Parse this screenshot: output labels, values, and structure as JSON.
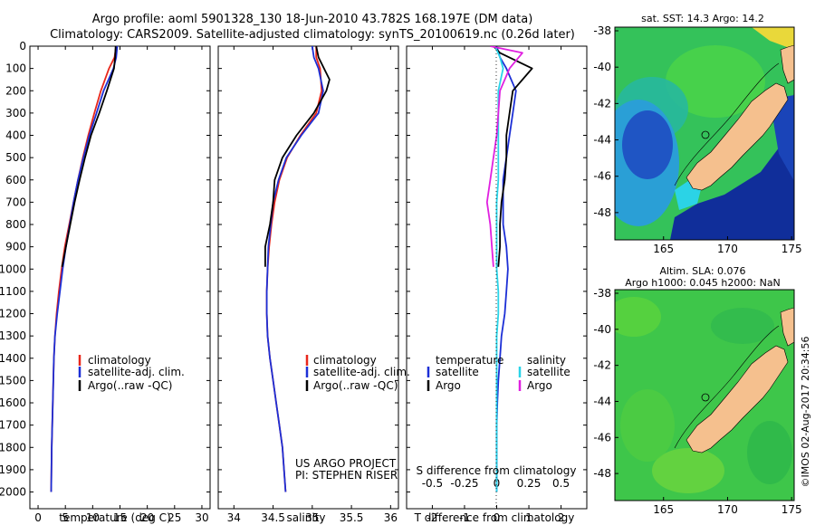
{
  "header": {
    "title_line1": "Argo profile: aoml 5901328_130 18-Jun-2010 43.782S 168.197E (DM data)",
    "title_line2": "Climatology: CARS2009. Satellite-adjusted climatology: synTS_20100619.nc (0.26d later)"
  },
  "colors": {
    "climatology": "#e8271b",
    "satellite": "#1c2fd6",
    "argo": "#000000",
    "argo_salinity_diff": "#e020e0",
    "satellite_salinity_diff": "#29d4e8",
    "land": "#f5c08e"
  },
  "chart_data": [
    {
      "id": "temperature-profile",
      "type": "line",
      "xlabel": "temperature (deg C)",
      "xlim": [
        -1.5,
        31.5
      ],
      "xticks": [
        0,
        5,
        10,
        15,
        20,
        25,
        30
      ],
      "ylim": [
        0,
        2075
      ],
      "yticks": [
        0,
        100,
        200,
        300,
        400,
        500,
        600,
        700,
        800,
        900,
        1000,
        1100,
        1200,
        1300,
        1400,
        1500,
        1600,
        1700,
        1800,
        1900,
        2000
      ],
      "y_reversed": true,
      "legend": [
        "climatology",
        "satellite-adj. clim.",
        "Argo(..raw -QC)"
      ],
      "legend_position": "lower-right",
      "series": [
        {
          "name": "climatology",
          "color_key": "climatology",
          "x": [
            14.3,
            14.0,
            13.0,
            11.5,
            10.3,
            9.2,
            8.2,
            7.3,
            6.5,
            5.7,
            4.9,
            4.3,
            3.8,
            3.4,
            3.1,
            2.9,
            2.8,
            2.7,
            2.6,
            2.5,
            2.4
          ],
          "y": [
            0,
            50,
            100,
            200,
            300,
            400,
            500,
            600,
            700,
            800,
            900,
            1000,
            1100,
            1200,
            1300,
            1400,
            1500,
            1600,
            1700,
            1800,
            2000
          ]
        },
        {
          "name": "satellite-adj. clim.",
          "color_key": "satellite",
          "x": [
            14.5,
            14.3,
            13.8,
            12.0,
            10.7,
            9.4,
            8.3,
            7.3,
            6.5,
            5.8,
            5.1,
            4.5,
            4.0,
            3.5,
            3.1,
            2.9,
            2.8,
            2.7,
            2.6,
            2.5,
            2.4
          ],
          "y": [
            0,
            50,
            100,
            200,
            300,
            400,
            500,
            600,
            700,
            800,
            900,
            1000,
            1100,
            1200,
            1300,
            1400,
            1500,
            1600,
            1700,
            1800,
            2000
          ]
        },
        {
          "name": "Argo(..raw -QC)",
          "color_key": "argo",
          "x": [
            14.2,
            14.1,
            13.9,
            12.6,
            11.2,
            9.7,
            8.6,
            7.6,
            6.7,
            5.9,
            5.1,
            4.4
          ],
          "y": [
            0,
            50,
            100,
            200,
            300,
            400,
            500,
            600,
            700,
            800,
            900,
            990
          ]
        }
      ]
    },
    {
      "id": "salinity-profile",
      "type": "line",
      "xlabel": "salinity",
      "xlim": [
        33.8,
        36.1
      ],
      "xticks": [
        34,
        34.5,
        35,
        35.5,
        36
      ],
      "ylim": [
        0,
        2075
      ],
      "y_reversed": true,
      "legend": [
        "climatology",
        "satellite-adj. clim.",
        "Argo(..raw -QC)"
      ],
      "legend_position": "lower-right",
      "annotation": [
        "US ARGO PROJECT",
        "PI: STEPHEN RISER"
      ],
      "series": [
        {
          "name": "climatology",
          "color_key": "climatology",
          "x": [
            35.05,
            35.05,
            35.1,
            35.12,
            35.05,
            34.85,
            34.68,
            34.58,
            34.52,
            34.48,
            34.45,
            34.43,
            34.42,
            34.42,
            34.43,
            34.46,
            34.5,
            34.54,
            34.58,
            34.62,
            34.66
          ],
          "y": [
            0,
            50,
            100,
            200,
            300,
            400,
            500,
            600,
            700,
            800,
            900,
            1000,
            1100,
            1200,
            1300,
            1400,
            1500,
            1600,
            1700,
            1800,
            2000
          ]
        },
        {
          "name": "satellite-adj. clim.",
          "color_key": "satellite",
          "x": [
            35.0,
            35.02,
            35.08,
            35.14,
            35.08,
            34.86,
            34.67,
            34.57,
            34.5,
            34.47,
            34.44,
            34.43,
            34.42,
            34.42,
            34.43,
            34.46,
            34.5,
            34.54,
            34.58,
            34.62,
            34.66
          ],
          "y": [
            0,
            50,
            100,
            200,
            300,
            400,
            500,
            600,
            700,
            800,
            900,
            1000,
            1100,
            1200,
            1300,
            1400,
            1500,
            1600,
            1700,
            1800,
            2000
          ]
        },
        {
          "name": "Argo(..raw -QC)",
          "color_key": "argo",
          "x": [
            35.05,
            35.08,
            35.22,
            35.18,
            35.02,
            34.8,
            34.62,
            34.52,
            34.5,
            34.46,
            34.4,
            34.4
          ],
          "y": [
            0,
            50,
            150,
            200,
            300,
            400,
            500,
            600,
            700,
            800,
            900,
            990
          ]
        }
      ]
    },
    {
      "id": "difference-profile",
      "type": "line",
      "xlabel": "T difference from climatology",
      "xlabel_top": "S difference from climatology",
      "xlim": [
        -2.8,
        2.8
      ],
      "xticks": [
        -2,
        -1,
        0,
        1,
        2
      ],
      "s_ticks": [
        -0.5,
        -0.25,
        0,
        0.25,
        0.5
      ],
      "ylim": [
        0,
        2075
      ],
      "y_reversed": true,
      "legend": [
        {
          "group": "temperature",
          "items": [
            "satellite",
            "Argo"
          ]
        },
        {
          "group": "salinity",
          "items": [
            "satellite",
            "Argo"
          ]
        }
      ],
      "legend_position": "lower-center",
      "series": [
        {
          "name": "temperature satellite",
          "color_key": "satellite",
          "x": [
            0.0,
            0.1,
            0.3,
            0.6,
            0.5,
            0.4,
            0.3,
            0.2,
            0.2,
            0.2,
            0.3,
            0.35,
            0.3,
            0.25,
            0.15,
            0.1,
            0.05,
            0.02,
            0.0,
            0.0,
            0.0,
            0.0
          ],
          "y": [
            0,
            50,
            100,
            200,
            300,
            400,
            500,
            600,
            700,
            800,
            900,
            1000,
            1100,
            1200,
            1300,
            1400,
            1500,
            1600,
            1700,
            1800,
            1900,
            2000
          ]
        },
        {
          "name": "temperature Argo",
          "color_key": "argo",
          "x": [
            -0.1,
            0.1,
            1.1,
            0.5,
            0.4,
            0.3,
            0.3,
            0.25,
            0.15,
            0.1,
            0.1,
            0.05
          ],
          "y": [
            0,
            30,
            100,
            200,
            300,
            400,
            500,
            600,
            700,
            800,
            900,
            990
          ]
        },
        {
          "name": "salinity satellite",
          "color_key": "satellite_salinity_diff",
          "x": [
            -0.05,
            0.1,
            0.2,
            0.05,
            0.05,
            0.05,
            0.05,
            0.05,
            0.0,
            0.0,
            0.0,
            0.0,
            0.05,
            0.05,
            0.0,
            0.0,
            0.0,
            0.0,
            0.0,
            0.0,
            0.0,
            0.0
          ],
          "y": [
            0,
            50,
            100,
            200,
            300,
            400,
            500,
            600,
            700,
            800,
            900,
            1000,
            1100,
            1200,
            1300,
            1400,
            1500,
            1600,
            1700,
            1800,
            1900,
            2000
          ]
        },
        {
          "name": "salinity Argo",
          "color_key": "argo_salinity_diff",
          "x": [
            -0.2,
            0.8,
            0.4,
            0.1,
            0.05,
            0.0,
            -0.1,
            -0.2,
            -0.3,
            -0.2,
            -0.15,
            -0.1
          ],
          "y": [
            0,
            30,
            100,
            200,
            300,
            400,
            500,
            600,
            700,
            800,
            900,
            990
          ]
        }
      ]
    }
  ],
  "maps": [
    {
      "id": "sst-map",
      "title": "sat. SST: 14.3 Argo: 14.2",
      "xticks": [
        165,
        170,
        175
      ],
      "yticks": [
        -38,
        -40,
        -42,
        -44,
        -46,
        -48
      ],
      "xlim": [
        161.2,
        175.2
      ],
      "ylim": [
        -49.5,
        -37.8
      ],
      "argo_position": {
        "lon": 168.197,
        "lat": -43.782
      }
    },
    {
      "id": "sla-map",
      "title_line1": "Altim. SLA: 0.076",
      "title_line2": "Argo h1000: 0.045 h2000: NaN",
      "xticks": [
        165,
        170,
        175
      ],
      "yticks": [
        -38,
        -40,
        -42,
        -44,
        -46,
        -48
      ],
      "xlim": [
        161.2,
        175.2
      ],
      "ylim": [
        -49.5,
        -37.8
      ],
      "argo_position": {
        "lon": 168.197,
        "lat": -43.782
      }
    }
  ],
  "footer": {
    "side_stamp": "©IMOS 02-Aug-2017 20:34:56"
  }
}
